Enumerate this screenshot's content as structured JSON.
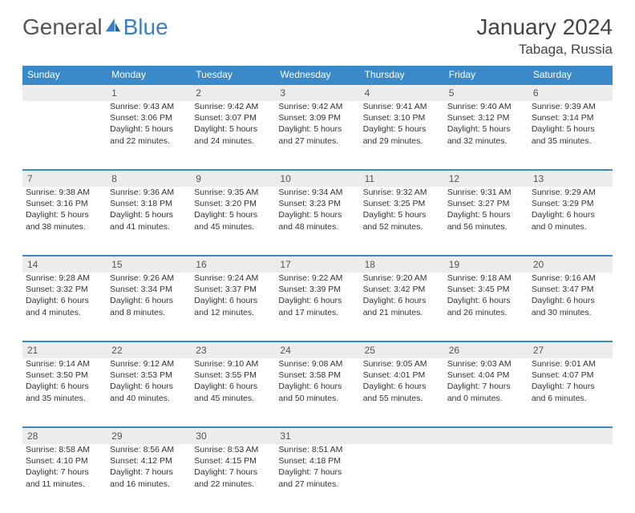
{
  "brand": {
    "part1": "General",
    "part2": "Blue",
    "accent_color": "#3a89c9"
  },
  "title": "January 2024",
  "location": "Tabaga, Russia",
  "colors": {
    "header_bg": "#3a89c9",
    "header_text": "#ffffff",
    "daynum_bg": "#ececec",
    "week_divider": "#3a89c9",
    "text": "#333333",
    "page_bg": "#ffffff"
  },
  "typography": {
    "title_fontsize": 28,
    "location_fontsize": 17,
    "header_fontsize": 12,
    "cell_fontsize": 10.5
  },
  "day_headers": [
    "Sunday",
    "Monday",
    "Tuesday",
    "Wednesday",
    "Thursday",
    "Friday",
    "Saturday"
  ],
  "weeks": [
    [
      null,
      {
        "n": "1",
        "sr": "Sunrise: 9:43 AM",
        "ss": "Sunset: 3:06 PM",
        "d1": "Daylight: 5 hours",
        "d2": "and 22 minutes."
      },
      {
        "n": "2",
        "sr": "Sunrise: 9:42 AM",
        "ss": "Sunset: 3:07 PM",
        "d1": "Daylight: 5 hours",
        "d2": "and 24 minutes."
      },
      {
        "n": "3",
        "sr": "Sunrise: 9:42 AM",
        "ss": "Sunset: 3:09 PM",
        "d1": "Daylight: 5 hours",
        "d2": "and 27 minutes."
      },
      {
        "n": "4",
        "sr": "Sunrise: 9:41 AM",
        "ss": "Sunset: 3:10 PM",
        "d1": "Daylight: 5 hours",
        "d2": "and 29 minutes."
      },
      {
        "n": "5",
        "sr": "Sunrise: 9:40 AM",
        "ss": "Sunset: 3:12 PM",
        "d1": "Daylight: 5 hours",
        "d2": "and 32 minutes."
      },
      {
        "n": "6",
        "sr": "Sunrise: 9:39 AM",
        "ss": "Sunset: 3:14 PM",
        "d1": "Daylight: 5 hours",
        "d2": "and 35 minutes."
      }
    ],
    [
      {
        "n": "7",
        "sr": "Sunrise: 9:38 AM",
        "ss": "Sunset: 3:16 PM",
        "d1": "Daylight: 5 hours",
        "d2": "and 38 minutes."
      },
      {
        "n": "8",
        "sr": "Sunrise: 9:36 AM",
        "ss": "Sunset: 3:18 PM",
        "d1": "Daylight: 5 hours",
        "d2": "and 41 minutes."
      },
      {
        "n": "9",
        "sr": "Sunrise: 9:35 AM",
        "ss": "Sunset: 3:20 PM",
        "d1": "Daylight: 5 hours",
        "d2": "and 45 minutes."
      },
      {
        "n": "10",
        "sr": "Sunrise: 9:34 AM",
        "ss": "Sunset: 3:23 PM",
        "d1": "Daylight: 5 hours",
        "d2": "and 48 minutes."
      },
      {
        "n": "11",
        "sr": "Sunrise: 9:32 AM",
        "ss": "Sunset: 3:25 PM",
        "d1": "Daylight: 5 hours",
        "d2": "and 52 minutes."
      },
      {
        "n": "12",
        "sr": "Sunrise: 9:31 AM",
        "ss": "Sunset: 3:27 PM",
        "d1": "Daylight: 5 hours",
        "d2": "and 56 minutes."
      },
      {
        "n": "13",
        "sr": "Sunrise: 9:29 AM",
        "ss": "Sunset: 3:29 PM",
        "d1": "Daylight: 6 hours",
        "d2": "and 0 minutes."
      }
    ],
    [
      {
        "n": "14",
        "sr": "Sunrise: 9:28 AM",
        "ss": "Sunset: 3:32 PM",
        "d1": "Daylight: 6 hours",
        "d2": "and 4 minutes."
      },
      {
        "n": "15",
        "sr": "Sunrise: 9:26 AM",
        "ss": "Sunset: 3:34 PM",
        "d1": "Daylight: 6 hours",
        "d2": "and 8 minutes."
      },
      {
        "n": "16",
        "sr": "Sunrise: 9:24 AM",
        "ss": "Sunset: 3:37 PM",
        "d1": "Daylight: 6 hours",
        "d2": "and 12 minutes."
      },
      {
        "n": "17",
        "sr": "Sunrise: 9:22 AM",
        "ss": "Sunset: 3:39 PM",
        "d1": "Daylight: 6 hours",
        "d2": "and 17 minutes."
      },
      {
        "n": "18",
        "sr": "Sunrise: 9:20 AM",
        "ss": "Sunset: 3:42 PM",
        "d1": "Daylight: 6 hours",
        "d2": "and 21 minutes."
      },
      {
        "n": "19",
        "sr": "Sunrise: 9:18 AM",
        "ss": "Sunset: 3:45 PM",
        "d1": "Daylight: 6 hours",
        "d2": "and 26 minutes."
      },
      {
        "n": "20",
        "sr": "Sunrise: 9:16 AM",
        "ss": "Sunset: 3:47 PM",
        "d1": "Daylight: 6 hours",
        "d2": "and 30 minutes."
      }
    ],
    [
      {
        "n": "21",
        "sr": "Sunrise: 9:14 AM",
        "ss": "Sunset: 3:50 PM",
        "d1": "Daylight: 6 hours",
        "d2": "and 35 minutes."
      },
      {
        "n": "22",
        "sr": "Sunrise: 9:12 AM",
        "ss": "Sunset: 3:53 PM",
        "d1": "Daylight: 6 hours",
        "d2": "and 40 minutes."
      },
      {
        "n": "23",
        "sr": "Sunrise: 9:10 AM",
        "ss": "Sunset: 3:55 PM",
        "d1": "Daylight: 6 hours",
        "d2": "and 45 minutes."
      },
      {
        "n": "24",
        "sr": "Sunrise: 9:08 AM",
        "ss": "Sunset: 3:58 PM",
        "d1": "Daylight: 6 hours",
        "d2": "and 50 minutes."
      },
      {
        "n": "25",
        "sr": "Sunrise: 9:05 AM",
        "ss": "Sunset: 4:01 PM",
        "d1": "Daylight: 6 hours",
        "d2": "and 55 minutes."
      },
      {
        "n": "26",
        "sr": "Sunrise: 9:03 AM",
        "ss": "Sunset: 4:04 PM",
        "d1": "Daylight: 7 hours",
        "d2": "and 0 minutes."
      },
      {
        "n": "27",
        "sr": "Sunrise: 9:01 AM",
        "ss": "Sunset: 4:07 PM",
        "d1": "Daylight: 7 hours",
        "d2": "and 6 minutes."
      }
    ],
    [
      {
        "n": "28",
        "sr": "Sunrise: 8:58 AM",
        "ss": "Sunset: 4:10 PM",
        "d1": "Daylight: 7 hours",
        "d2": "and 11 minutes."
      },
      {
        "n": "29",
        "sr": "Sunrise: 8:56 AM",
        "ss": "Sunset: 4:12 PM",
        "d1": "Daylight: 7 hours",
        "d2": "and 16 minutes."
      },
      {
        "n": "30",
        "sr": "Sunrise: 8:53 AM",
        "ss": "Sunset: 4:15 PM",
        "d1": "Daylight: 7 hours",
        "d2": "and 22 minutes."
      },
      {
        "n": "31",
        "sr": "Sunrise: 8:51 AM",
        "ss": "Sunset: 4:18 PM",
        "d1": "Daylight: 7 hours",
        "d2": "and 27 minutes."
      },
      null,
      null,
      null
    ]
  ]
}
